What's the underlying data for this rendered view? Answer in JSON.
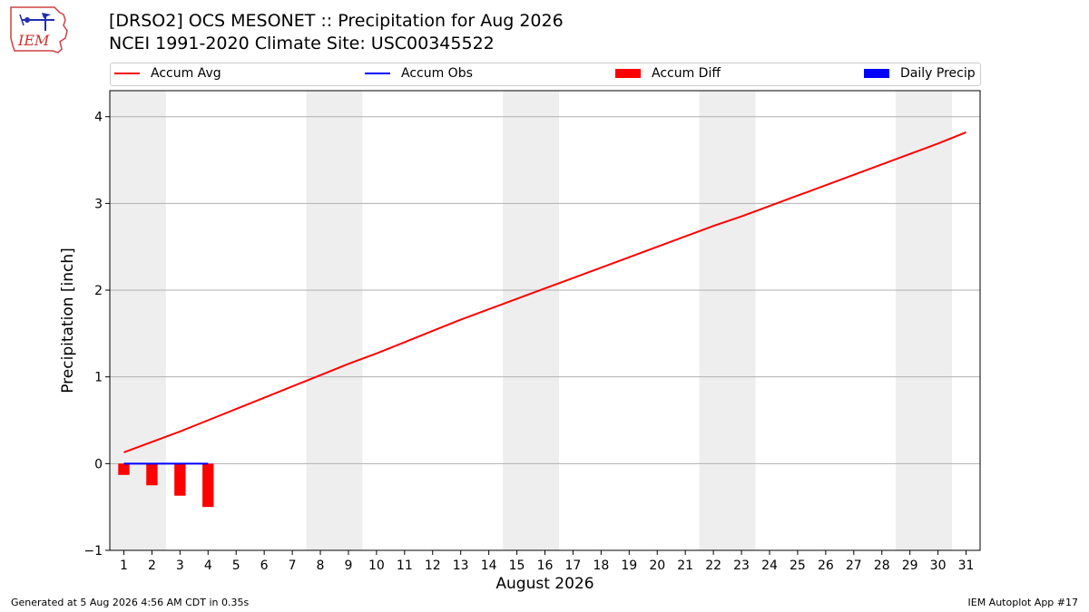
{
  "header": {
    "title_line1": "[DRSO2] OCS MESONET :: Precipitation for Aug 2026",
    "title_line2": "NCEI 1991-2020 Climate Site: USC00345522",
    "logo_text": "IEM"
  },
  "legend": {
    "placement": "top",
    "items": [
      {
        "label": "Accum Avg",
        "kind": "line",
        "color": "#ff0000"
      },
      {
        "label": "Accum Obs",
        "kind": "line",
        "color": "#0000ff"
      },
      {
        "label": "Accum Diff",
        "kind": "box",
        "color": "#ff0000"
      },
      {
        "label": "Daily Precip",
        "kind": "box",
        "color": "#0000ff"
      }
    ]
  },
  "footer": {
    "left": "Generated at 5 Aug 2026 4:56 AM CDT in 0.35s",
    "right": "IEM Autoplot App #17"
  },
  "chart_data": {
    "type": "line",
    "xlabel": "August 2026",
    "ylabel": "Precipitation [inch]",
    "xlim": [
      0.5,
      31.5
    ],
    "ylim": [
      -1,
      4.3
    ],
    "yticks": [
      -1,
      0,
      1,
      2,
      3,
      4
    ],
    "ytick_labels": [
      "−1",
      "0",
      "1",
      "2",
      "3",
      "4"
    ],
    "x": [
      1,
      2,
      3,
      4,
      5,
      6,
      7,
      8,
      9,
      10,
      11,
      12,
      13,
      14,
      15,
      16,
      17,
      18,
      19,
      20,
      21,
      22,
      23,
      24,
      25,
      26,
      27,
      28,
      29,
      30,
      31
    ],
    "xtick_labels": [
      "1",
      "2",
      "3",
      "4",
      "5",
      "6",
      "7",
      "8",
      "9",
      "10",
      "11",
      "12",
      "13",
      "14",
      "15",
      "16",
      "17",
      "18",
      "19",
      "20",
      "21",
      "22",
      "23",
      "24",
      "25",
      "26",
      "27",
      "28",
      "29",
      "30",
      "31"
    ],
    "weekend_bands": [
      [
        1,
        2
      ],
      [
        8,
        9
      ],
      [
        15,
        16
      ],
      [
        22,
        23
      ],
      [
        29,
        30
      ]
    ],
    "grid": "horizontal",
    "series": [
      {
        "name": "Accum Avg",
        "kind": "line",
        "color": "#ff0000",
        "x": [
          1,
          2,
          3,
          4,
          5,
          6,
          7,
          8,
          9,
          10,
          11,
          12,
          13,
          14,
          15,
          16,
          17,
          18,
          19,
          20,
          21,
          22,
          23,
          24,
          25,
          26,
          27,
          28,
          29,
          30,
          31
        ],
        "values": [
          0.13,
          0.25,
          0.37,
          0.5,
          0.63,
          0.76,
          0.89,
          1.02,
          1.15,
          1.27,
          1.4,
          1.53,
          1.66,
          1.78,
          1.9,
          2.02,
          2.14,
          2.26,
          2.38,
          2.5,
          2.62,
          2.74,
          2.85,
          2.97,
          3.09,
          3.21,
          3.33,
          3.45,
          3.57,
          3.69,
          3.82
        ]
      },
      {
        "name": "Accum Obs",
        "kind": "line",
        "color": "#0000ff",
        "x": [
          1,
          2,
          3,
          4
        ],
        "values": [
          0,
          0,
          0,
          0
        ]
      },
      {
        "name": "Accum Diff",
        "kind": "bar",
        "color": "#ff0000",
        "x": [
          1,
          2,
          3,
          4
        ],
        "values": [
          -0.13,
          -0.25,
          -0.37,
          -0.5
        ]
      },
      {
        "name": "Daily Precip",
        "kind": "bar",
        "color": "#0000ff",
        "x": [
          1,
          2,
          3,
          4
        ],
        "values": [
          0,
          0,
          0,
          0
        ]
      }
    ]
  }
}
